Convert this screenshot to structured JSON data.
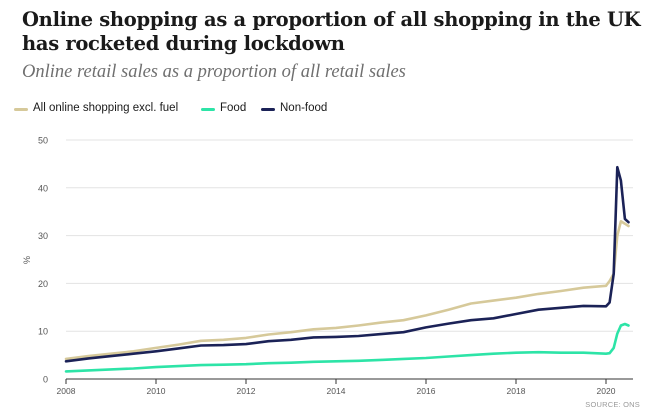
{
  "title": "Online shopping as a proportion of all shopping in the UK has rocketed during lockdown",
  "subtitle": "Online retail sales as a proportion of all retail sales",
  "source": "SOURCE: ONS",
  "chart_data": {
    "type": "line",
    "ylabel": "%",
    "xlabel": "",
    "ylim": [
      0,
      50
    ],
    "xlim": [
      2008,
      2020.6
    ],
    "yticks": [
      0,
      10,
      20,
      30,
      40,
      50
    ],
    "xticks": [
      2008,
      2010,
      2012,
      2014,
      2016,
      2018,
      2020
    ],
    "grid": "horizontal",
    "legend_position": "top-left",
    "series": [
      {
        "name": "All online shopping excl. fuel",
        "color": "#d6c99a",
        "points": [
          [
            2008.0,
            4.2
          ],
          [
            2008.5,
            4.8
          ],
          [
            2009.0,
            5.3
          ],
          [
            2009.5,
            5.8
          ],
          [
            2010.0,
            6.5
          ],
          [
            2010.5,
            7.2
          ],
          [
            2011.0,
            8.0
          ],
          [
            2011.5,
            8.2
          ],
          [
            2012.0,
            8.6
          ],
          [
            2012.5,
            9.3
          ],
          [
            2013.0,
            9.8
          ],
          [
            2013.5,
            10.4
          ],
          [
            2014.0,
            10.7
          ],
          [
            2014.5,
            11.2
          ],
          [
            2015.0,
            11.8
          ],
          [
            2015.5,
            12.3
          ],
          [
            2016.0,
            13.3
          ],
          [
            2016.5,
            14.5
          ],
          [
            2017.0,
            15.8
          ],
          [
            2017.5,
            16.4
          ],
          [
            2018.0,
            17.0
          ],
          [
            2018.5,
            17.8
          ],
          [
            2019.0,
            18.4
          ],
          [
            2019.5,
            19.1
          ],
          [
            2020.0,
            19.5
          ],
          [
            2020.08,
            20.5
          ],
          [
            2020.17,
            22.0
          ],
          [
            2020.25,
            30.0
          ],
          [
            2020.33,
            33.0
          ],
          [
            2020.42,
            32.5
          ],
          [
            2020.5,
            32.0
          ]
        ]
      },
      {
        "name": "Food",
        "color": "#2de4a7",
        "points": [
          [
            2008.0,
            1.6
          ],
          [
            2008.5,
            1.8
          ],
          [
            2009.0,
            2.0
          ],
          [
            2009.5,
            2.2
          ],
          [
            2010.0,
            2.5
          ],
          [
            2010.5,
            2.7
          ],
          [
            2011.0,
            2.9
          ],
          [
            2011.5,
            3.0
          ],
          [
            2012.0,
            3.1
          ],
          [
            2012.5,
            3.3
          ],
          [
            2013.0,
            3.4
          ],
          [
            2013.5,
            3.6
          ],
          [
            2014.0,
            3.7
          ],
          [
            2014.5,
            3.8
          ],
          [
            2015.0,
            4.0
          ],
          [
            2015.5,
            4.2
          ],
          [
            2016.0,
            4.4
          ],
          [
            2016.5,
            4.7
          ],
          [
            2017.0,
            5.0
          ],
          [
            2017.5,
            5.3
          ],
          [
            2018.0,
            5.5
          ],
          [
            2018.5,
            5.6
          ],
          [
            2019.0,
            5.5
          ],
          [
            2019.5,
            5.5
          ],
          [
            2020.0,
            5.3
          ],
          [
            2020.08,
            5.4
          ],
          [
            2020.17,
            6.5
          ],
          [
            2020.25,
            9.5
          ],
          [
            2020.33,
            11.2
          ],
          [
            2020.42,
            11.5
          ],
          [
            2020.5,
            11.2
          ]
        ]
      },
      {
        "name": "Non-food",
        "color": "#1b2257",
        "points": [
          [
            2008.0,
            3.7
          ],
          [
            2008.5,
            4.3
          ],
          [
            2009.0,
            4.8
          ],
          [
            2009.5,
            5.3
          ],
          [
            2010.0,
            5.8
          ],
          [
            2010.5,
            6.4
          ],
          [
            2011.0,
            7.0
          ],
          [
            2011.5,
            7.1
          ],
          [
            2012.0,
            7.3
          ],
          [
            2012.5,
            7.9
          ],
          [
            2013.0,
            8.2
          ],
          [
            2013.5,
            8.7
          ],
          [
            2014.0,
            8.8
          ],
          [
            2014.5,
            9.0
          ],
          [
            2015.0,
            9.4
          ],
          [
            2015.5,
            9.8
          ],
          [
            2016.0,
            10.8
          ],
          [
            2016.5,
            11.6
          ],
          [
            2017.0,
            12.3
          ],
          [
            2017.5,
            12.7
          ],
          [
            2018.0,
            13.6
          ],
          [
            2018.5,
            14.5
          ],
          [
            2019.0,
            14.9
          ],
          [
            2019.5,
            15.3
          ],
          [
            2020.0,
            15.2
          ],
          [
            2020.08,
            16.0
          ],
          [
            2020.17,
            22.0
          ],
          [
            2020.25,
            44.3
          ],
          [
            2020.33,
            41.5
          ],
          [
            2020.42,
            33.5
          ],
          [
            2020.5,
            32.8
          ]
        ]
      }
    ]
  }
}
